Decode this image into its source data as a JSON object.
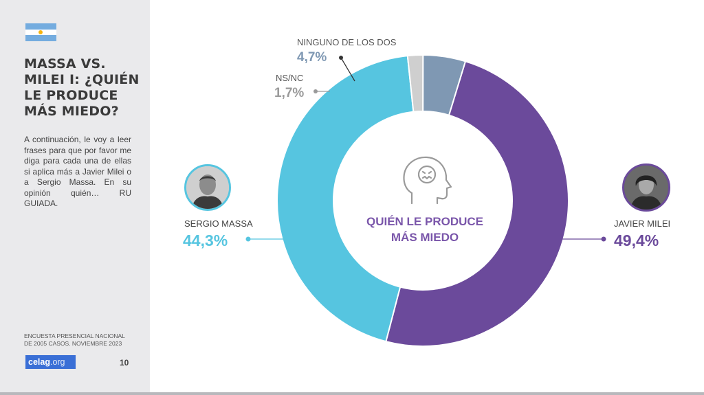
{
  "sidebar": {
    "title": "MASSA VS. MILEI I: ¿QUIÉN LE PRODUCE MÁS MIEDO?",
    "description": "A continuación, le voy a leer frases para que por favor me diga para cada una de ellas si aplica más a Javier Milei o a Sergio Massa. En su opinión quién… RU GUIADA.",
    "source": "ENCUESTA PRESENCIAL NACIONAL DE 2005 CASOS. NOVIEMBRE 2023",
    "logo_main": "celag",
    "logo_suffix": ".org",
    "page_number": "10",
    "flag_icon": "argentina-flag-icon"
  },
  "center": {
    "line1": "QUIÉN LE PRODUCE",
    "line2": "MÁS MIEDO",
    "icon": "scared-head-icon"
  },
  "chart_data": {
    "type": "pie",
    "subtype": "donut",
    "slices": [
      {
        "label": "JAVIER MILEI",
        "value": 49.4,
        "display": "49,4%",
        "color": "#6b4a9b"
      },
      {
        "label": "SERGIO MASSA",
        "value": 44.3,
        "display": "44,3%",
        "color": "#56c5e0"
      },
      {
        "label": "NS/NC",
        "value": 1.7,
        "display": "1,7%",
        "color": "#cfcfcf"
      },
      {
        "label": "NINGUNO DE LOS DOS",
        "value": 4.7,
        "display": "4,7%",
        "color": "#7f98b3"
      }
    ],
    "legend": "none"
  }
}
